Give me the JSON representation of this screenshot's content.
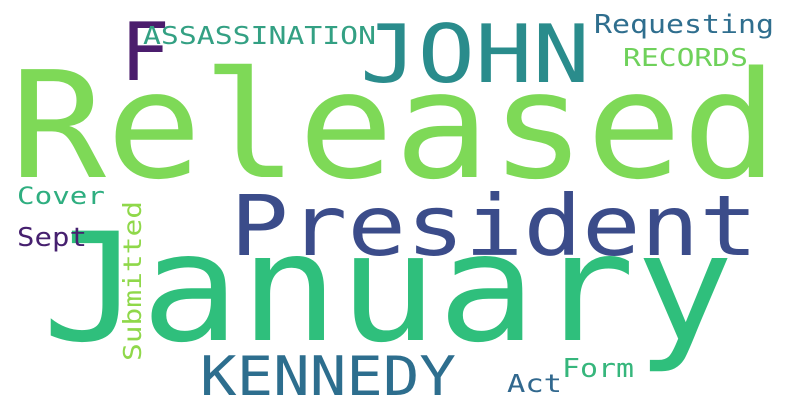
{
  "words": {
    "released": {
      "text": "Released",
      "color": "#7ed957"
    },
    "january": {
      "text": "January",
      "color": "#2fbf7c"
    },
    "president": {
      "text": "President",
      "color": "#3b4c8a"
    },
    "john": {
      "text": "JOHN",
      "color": "#2a8c8c"
    },
    "kennedy": {
      "text": "KENNEDY",
      "color": "#2d6e8e"
    },
    "f": {
      "text": "F",
      "color": "#4b1d6d"
    },
    "assassination": {
      "text": "ASSASSINATION",
      "color": "#33a083"
    },
    "requesting": {
      "text": "Requesting",
      "color": "#2f6e8e"
    },
    "records": {
      "text": "RECORDS",
      "color": "#6fd15b"
    },
    "cover": {
      "text": "Cover",
      "color": "#2fae80"
    },
    "sept": {
      "text": "Sept",
      "color": "#46206f"
    },
    "submitted": {
      "text": "Submitted",
      "color": "#8fd84a"
    },
    "act": {
      "text": "Act",
      "color": "#31688e"
    },
    "form": {
      "text": "Form",
      "color": "#36b67c"
    }
  }
}
